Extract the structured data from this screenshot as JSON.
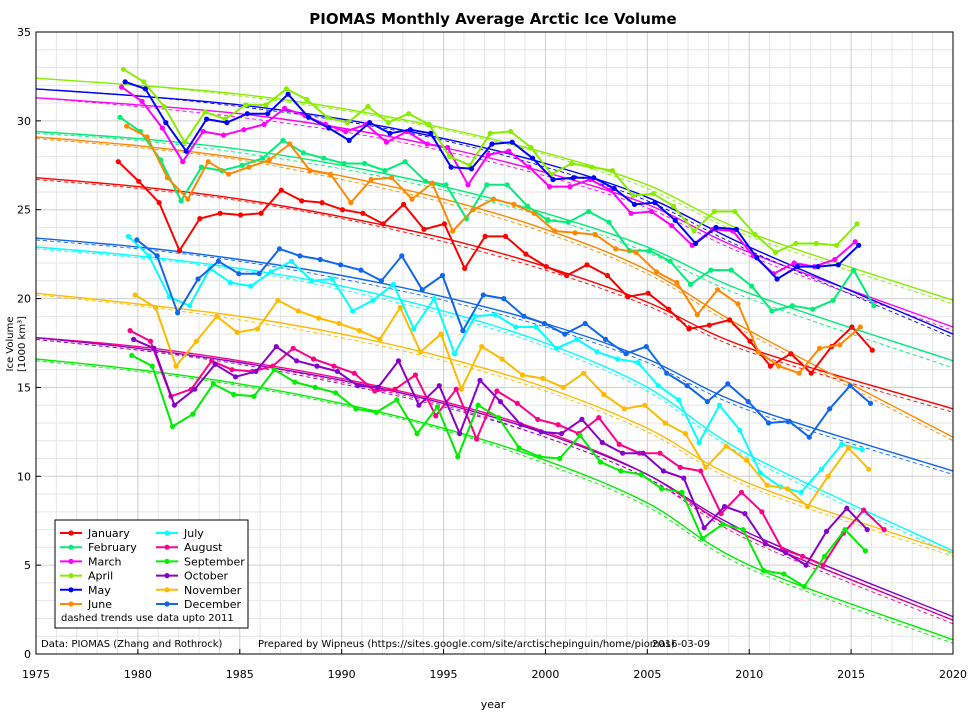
{
  "chart_data": {
    "type": "line",
    "title": "PIOMAS Monthly Average Arctic Ice Volume",
    "xlabel": "year",
    "ylabel": "Ice Volume",
    "yunit": "[1000 km³]",
    "xlim": [
      1975,
      2020
    ],
    "ylim": [
      0,
      35
    ],
    "xticks": [
      1975,
      1980,
      1985,
      1990,
      1995,
      2000,
      2005,
      2010,
      2015,
      2020
    ],
    "yticks": [
      0,
      5,
      10,
      15,
      20,
      25,
      30,
      35
    ],
    "grid": true,
    "legend_position": "bottom-left",
    "legend_note": "dashed trends use data upto 2011",
    "footer": {
      "source": "Data: PIOMAS (Zhang and Rothrock)",
      "credit": "Prepared by Wipneus (https://sites.google.com/site/arctischepinguin/home/piomas)",
      "date": "2016-03-09"
    },
    "series": [
      {
        "name": "January",
        "color": "#ff0000",
        "start": 1979.04,
        "values": [
          27.7,
          26.6,
          25.4,
          22.7,
          24.5,
          24.8,
          24.7,
          24.8,
          26.1,
          25.5,
          25.4,
          25.0,
          24.8,
          24.2,
          25.3,
          23.9,
          24.2,
          21.7,
          23.5,
          23.5,
          22.5,
          21.8,
          21.3,
          21.9,
          21.3,
          20.1,
          20.3,
          19.4,
          18.3,
          18.5,
          18.8,
          17.6,
          16.2,
          16.9,
          15.8,
          17.3,
          18.4,
          17.1
        ],
        "trend": [
          26.8,
          26.3,
          25.6,
          24.6,
          23.4,
          21.8,
          19.8,
          17.2,
          13.8
        ],
        "trend2011": [
          26.7,
          26.2,
          25.5,
          24.5,
          23.2,
          21.6,
          19.6,
          17.0,
          13.6
        ]
      },
      {
        "name": "February",
        "color": "#00ee77",
        "start": 1979.12,
        "values": [
          30.2,
          29.4,
          27.8,
          25.5,
          27.4,
          27.2,
          27.5,
          27.9,
          28.9,
          28.2,
          27.9,
          27.6,
          27.6,
          27.2,
          27.7,
          26.6,
          26.4,
          24.5,
          26.4,
          26.4,
          25.2,
          24.4,
          24.3,
          24.9,
          24.3,
          22.7,
          22.7,
          22.1,
          20.8,
          21.6,
          21.6,
          20.7,
          19.3,
          19.6,
          19.4,
          19.9,
          21.6,
          19.6
        ],
        "trend": [
          29.4,
          29.0,
          28.4,
          27.5,
          26.3,
          24.8,
          22.9,
          20.3,
          16.5
        ],
        "trend2011": [
          29.3,
          28.9,
          28.2,
          27.3,
          26.1,
          24.6,
          22.6,
          20.0,
          16.1
        ]
      },
      {
        "name": "March",
        "color": "#ff00ff",
        "start": 1979.2,
        "values": [
          31.9,
          31.1,
          29.6,
          27.7,
          29.4,
          29.2,
          29.5,
          29.8,
          30.7,
          30.3,
          29.8,
          29.4,
          29.8,
          28.8,
          29.4,
          28.7,
          28.5,
          26.4,
          28.1,
          28.3,
          27.4,
          26.3,
          26.3,
          26.7,
          26.1,
          24.8,
          24.9,
          24.1,
          23.0,
          23.9,
          23.8,
          22.4,
          21.4,
          22.0,
          21.8,
          22.2,
          23.2
        ],
        "trend": [
          31.3,
          30.9,
          30.4,
          29.6,
          28.5,
          27.1,
          25.3,
          22.6,
          18.4
        ],
        "trend2011": [
          31.3,
          30.8,
          30.2,
          29.4,
          28.3,
          26.9,
          25.1,
          22.4,
          18.2
        ]
      },
      {
        "name": "April",
        "color": "#88ee00",
        "start": 1979.29,
        "values": [
          32.9,
          32.2,
          30.8,
          28.8,
          30.5,
          30.1,
          30.9,
          30.9,
          31.8,
          31.2,
          30.2,
          29.9,
          30.8,
          29.9,
          30.4,
          29.8,
          28.0,
          27.5,
          29.3,
          29.4,
          28.5,
          27.0,
          27.6,
          27.4,
          27.2,
          25.8,
          25.9,
          25.2,
          23.8,
          24.9,
          24.9,
          23.6,
          22.6,
          23.1,
          23.1,
          23.0,
          24.2
        ],
        "trend": [
          32.4,
          32.0,
          31.5,
          30.7,
          29.6,
          28.2,
          26.4,
          23.7,
          19.9
        ],
        "trend2011": [
          32.4,
          32.0,
          31.4,
          30.6,
          29.5,
          28.1,
          26.2,
          23.5,
          19.7
        ]
      },
      {
        "name": "May",
        "color": "#0000ff",
        "start": 1979.37,
        "values": [
          32.2,
          31.8,
          29.9,
          28.3,
          30.1,
          29.9,
          30.4,
          30.4,
          31.5,
          30.2,
          29.6,
          28.9,
          29.9,
          29.3,
          29.5,
          29.3,
          27.4,
          27.3,
          28.7,
          28.8,
          27.9,
          26.7,
          26.8,
          26.8,
          26.2,
          25.3,
          25.4,
          24.4,
          23.1,
          24.0,
          23.9,
          22.3,
          21.1,
          21.8,
          21.8,
          21.9,
          23.0
        ],
        "trend": [
          31.8,
          31.4,
          30.9,
          30.1,
          29.0,
          27.6,
          25.7,
          22.9,
          18.0
        ],
        "trend2011": [
          31.8,
          31.4,
          30.8,
          30.0,
          28.9,
          27.4,
          25.5,
          22.7,
          17.8
        ]
      },
      {
        "name": "June",
        "color": "#ff8800",
        "start": 1979.45,
        "values": [
          29.7,
          29.1,
          26.8,
          25.6,
          27.7,
          27.0,
          27.4,
          27.8,
          28.7,
          27.2,
          27.0,
          25.4,
          26.7,
          26.8,
          25.6,
          26.5,
          23.8,
          25.0,
          25.6,
          25.3,
          24.8,
          23.8,
          23.7,
          23.6,
          22.8,
          22.6,
          21.5,
          20.9,
          19.1,
          20.5,
          19.7,
          17.0,
          16.2,
          15.8,
          17.2,
          17.4,
          18.4
        ],
        "trend": [
          29.1,
          28.6,
          27.9,
          26.9,
          25.6,
          23.9,
          21.6,
          18.2,
          12.2
        ],
        "trend2011": [
          29.0,
          28.5,
          27.8,
          26.7,
          25.4,
          23.7,
          21.4,
          18.0,
          12.0
        ]
      },
      {
        "name": "July",
        "color": "#00ffff",
        "start": 1979.54,
        "values": [
          23.5,
          22.4,
          20.1,
          19.6,
          21.7,
          20.9,
          20.7,
          21.5,
          22.1,
          21.0,
          21.1,
          19.3,
          19.9,
          20.8,
          18.3,
          20.0,
          16.9,
          19.0,
          19.1,
          18.4,
          18.4,
          17.2,
          17.7,
          17.0,
          16.6,
          16.4,
          15.1,
          14.3,
          11.9,
          14.0,
          12.6,
          10.2,
          9.4,
          9.1,
          10.4,
          11.8,
          11.5
        ],
        "trend": [
          22.9,
          22.4,
          21.7,
          20.7,
          19.3,
          17.5,
          15.0,
          11.2,
          5.8
        ],
        "trend2011": [
          22.8,
          22.3,
          21.6,
          20.5,
          19.1,
          17.3,
          14.8,
          11.0,
          5.6
        ]
      },
      {
        "name": "August",
        "color": "#ff0088",
        "start": 1979.62,
        "values": [
          18.2,
          17.6,
          14.5,
          14.9,
          16.5,
          16.0,
          15.9,
          16.2,
          17.2,
          16.6,
          16.2,
          15.8,
          14.8,
          14.9,
          15.7,
          13.4,
          14.9,
          12.1,
          14.8,
          14.1,
          13.2,
          12.9,
          12.4,
          13.3,
          11.8,
          11.3,
          11.3,
          10.5,
          10.3,
          7.9,
          9.1,
          8.0,
          5.9,
          5.5,
          5.0,
          6.8,
          8.1,
          7.0
        ],
        "trend": [
          17.8,
          17.3,
          16.5,
          15.5,
          14.2,
          12.5,
          10.1,
          6.6,
          1.9
        ],
        "trend2011": [
          17.7,
          17.1,
          16.4,
          15.3,
          14.0,
          12.2,
          9.9,
          6.4,
          1.7
        ]
      },
      {
        "name": "September",
        "color": "#00ee00",
        "start": 1979.7,
        "values": [
          16.8,
          16.2,
          12.8,
          13.5,
          15.2,
          14.6,
          14.5,
          16.0,
          15.3,
          15.0,
          14.7,
          13.8,
          13.6,
          14.3,
          12.4,
          13.9,
          11.1,
          14.0,
          13.3,
          11.6,
          11.1,
          11.0,
          12.3,
          10.8,
          10.3,
          10.1,
          9.3,
          9.1,
          6.5,
          7.3,
          7.0,
          4.7,
          4.5,
          3.8,
          5.5,
          7.0,
          5.8
        ],
        "trend": [
          16.6,
          16.0,
          15.2,
          14.1,
          12.7,
          10.9,
          8.5,
          5.0,
          0.8
        ],
        "trend2011": [
          16.5,
          15.9,
          15.1,
          14.0,
          12.6,
          10.7,
          8.3,
          4.8,
          0.6
        ]
      },
      {
        "name": "October",
        "color": "#8800cc",
        "start": 1979.79,
        "values": [
          17.7,
          17.2,
          14.0,
          14.9,
          16.3,
          15.6,
          15.9,
          17.3,
          16.5,
          16.2,
          15.9,
          15.1,
          15.0,
          16.5,
          14.0,
          15.1,
          12.4,
          15.4,
          14.2,
          12.9,
          12.5,
          12.4,
          13.2,
          11.9,
          11.3,
          11.3,
          10.3,
          9.9,
          7.1,
          8.3,
          7.9,
          6.2,
          5.7,
          5.0,
          6.9,
          8.2,
          7.0
        ],
        "trend": [
          17.8,
          17.2,
          16.4,
          15.4,
          14.1,
          12.4,
          10.1,
          6.8,
          2.1
        ],
        "trend2011": [
          17.7,
          17.1,
          16.3,
          15.2,
          13.9,
          12.2,
          9.9,
          6.6,
          1.9
        ]
      },
      {
        "name": "November",
        "color": "#ffbb00",
        "start": 1979.87,
        "values": [
          20.2,
          19.5,
          16.2,
          17.6,
          19.0,
          18.1,
          18.3,
          19.9,
          19.3,
          18.9,
          18.6,
          18.2,
          17.7,
          19.5,
          17.0,
          18.0,
          14.9,
          17.3,
          16.6,
          15.7,
          15.5,
          15.0,
          15.8,
          14.6,
          13.8,
          14.0,
          13.0,
          12.4,
          10.5,
          11.7,
          10.9,
          9.5,
          9.3,
          8.3,
          10.0,
          11.6,
          10.4
        ],
        "trend": [
          20.3,
          19.7,
          19.0,
          18.0,
          16.7,
          15.0,
          12.7,
          9.6,
          5.7
        ],
        "trend2011": [
          20.2,
          19.6,
          18.8,
          17.8,
          16.5,
          14.8,
          12.5,
          9.4,
          5.5
        ]
      },
      {
        "name": "December",
        "color": "#1166ee",
        "start": 1979.95,
        "values": [
          23.3,
          22.4,
          19.2,
          21.1,
          22.1,
          21.4,
          21.4,
          22.8,
          22.4,
          22.2,
          21.9,
          21.6,
          21.0,
          22.4,
          20.5,
          21.3,
          18.2,
          20.2,
          20.0,
          19.0,
          18.6,
          18.0,
          18.6,
          17.7,
          16.9,
          17.3,
          15.8,
          15.1,
          14.2,
          15.2,
          14.2,
          13.0,
          13.1,
          12.2,
          13.8,
          15.1,
          14.1
        ],
        "trend": [
          23.4,
          22.9,
          22.2,
          21.3,
          20.1,
          18.6,
          16.6,
          13.9,
          10.3
        ],
        "trend2011": [
          23.3,
          22.8,
          22.1,
          21.1,
          19.9,
          18.4,
          16.4,
          13.7,
          10.1
        ]
      }
    ]
  }
}
